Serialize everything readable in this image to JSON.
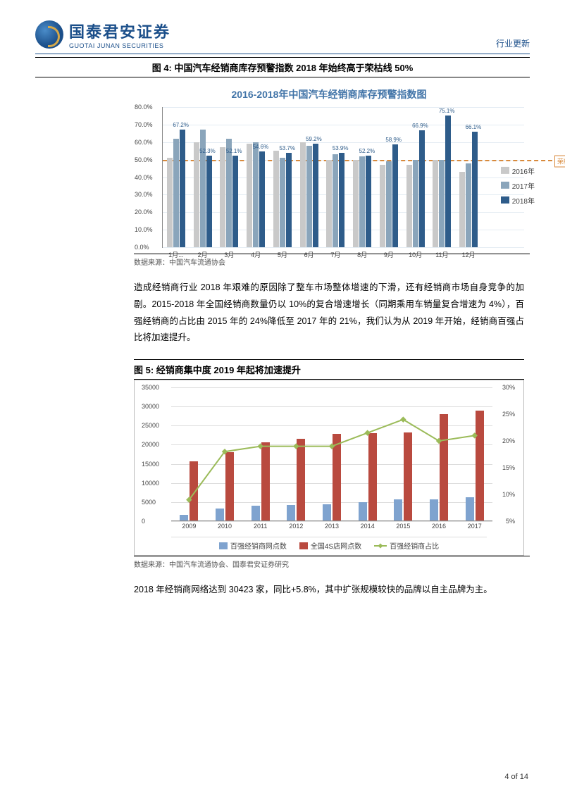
{
  "header": {
    "logo_zh": "国泰君安证券",
    "logo_en": "GUOTAI JUNAN SECURITIES",
    "right_label": "行业更新"
  },
  "fig4": {
    "title": "图 4:  中国汽车经销商库存预警指数 2018 年始终高于荣枯线 50%",
    "chart_title": "2016-2018年中国汽车经销商库存预警指数图",
    "y_max": 80,
    "y_ticks": [
      "80.0%",
      "70.0%",
      "60.0%",
      "50.0%",
      "40.0%",
      "30.0%",
      "20.0%",
      "10.0%",
      "0.0%"
    ],
    "baseline_pct": 50,
    "baseline_label": "荣枯线",
    "months": [
      "1月...",
      "2月",
      "3月",
      "4月",
      "5月",
      "6月",
      "7月",
      "8月",
      "9月",
      "10月",
      "11月",
      "12月"
    ],
    "series": {
      "y2016": [
        51,
        60,
        57,
        59,
        55,
        60,
        50,
        50,
        47,
        47,
        50,
        43
      ],
      "y2017": [
        62,
        67,
        62,
        60,
        51,
        58,
        53,
        52,
        49,
        50,
        50,
        48
      ],
      "y2018": [
        67.2,
        52.3,
        52.1,
        54.6,
        53.7,
        59.2,
        53.9,
        52.2,
        58.9,
        66.9,
        75.1,
        66.1
      ]
    },
    "legend": [
      "2016年",
      "2017年",
      "2018年"
    ],
    "colors": {
      "y2016": "#c9c9c9",
      "y2017": "#8aa5bb",
      "y2018": "#2e5c8a",
      "baseline": "#d88a3c",
      "grid": "#e4ecf3"
    },
    "source": "数据来源：中国汽车流通协会"
  },
  "paragraph1": "造成经销商行业 2018 年艰难的原因除了整车市场整体增速的下滑，还有经销商市场自身竞争的加剧。2015-2018 年全国经销商数量仍以 10%的复合增速增长（同期乘用车销量复合增速为 4%），百强经销商的占比由 2015 年的 24%降低至 2017 年的 21%，我们认为从 2019 年开始，经销商百强占比将加速提升。",
  "fig5": {
    "title": "图 5:  经销商集中度 2019 年起将加速提升",
    "y_left_max": 35000,
    "y_left_ticks": [
      "35000",
      "30000",
      "25000",
      "20000",
      "15000",
      "10000",
      "5000",
      "0"
    ],
    "y_right_max": 30,
    "y_right_min": 5,
    "y_right_ticks": [
      "30%",
      "25%",
      "20%",
      "15%",
      "10%",
      "5%"
    ],
    "years": [
      "2009",
      "2010",
      "2011",
      "2012",
      "2013",
      "2014",
      "2015",
      "2016",
      "2017"
    ],
    "series": {
      "top100": [
        1400,
        3200,
        3900,
        4100,
        4300,
        4900,
        5500,
        5600,
        6200
      ],
      "all4s": [
        15500,
        18000,
        20500,
        21500,
        22800,
        23000,
        23200,
        28000,
        28900
      ],
      "share": [
        9,
        18,
        19,
        19,
        19,
        21.5,
        24,
        20,
        21
      ]
    },
    "legend": [
      "百强经销商网点数",
      "全国4S店网点数",
      "百强经销商占比"
    ],
    "colors": {
      "top100": "#7fa3cf",
      "all4s": "#b94a3f",
      "share": "#9bbb59",
      "grid": "#dddddd",
      "border": "#bbbbbb"
    },
    "source": "数据来源：中国汽车流通协会、国泰君安证券研究"
  },
  "paragraph2": "2018 年经销商网络达到 30423 家，同比+5.8%，其中扩张规模较快的品牌以自主品牌为主。",
  "footer": "4 of 14"
}
